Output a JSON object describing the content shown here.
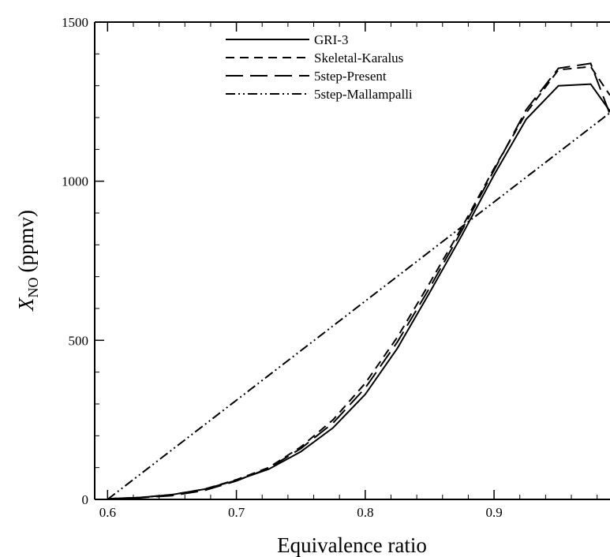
{
  "chart_data": {
    "type": "line",
    "xlabel": "Equivalence ratio",
    "ylabel": {
      "main": "X",
      "subscript": "NO",
      "unit": "(ppmv)"
    },
    "xlim": [
      0.59,
      0.99
    ],
    "ylim": [
      0,
      1500
    ],
    "xticks": [
      0.6,
      0.7,
      0.8,
      0.9
    ],
    "xtick_labels": [
      "0.6",
      "0.7",
      "0.8",
      "0.9"
    ],
    "yticks": [
      0,
      500,
      1000,
      1500
    ],
    "ytick_labels": [
      "0",
      "500",
      "1000",
      "1500"
    ],
    "grid": false,
    "legend_position": "top-center",
    "series": [
      {
        "name": "GRI-3",
        "dash": "solid",
        "x": [
          0.6,
          0.625,
          0.65,
          0.675,
          0.7,
          0.725,
          0.75,
          0.775,
          0.8,
          0.825,
          0.85,
          0.875,
          0.9,
          0.925,
          0.95,
          0.975,
          0.99
        ],
        "y": [
          2,
          6,
          15,
          32,
          60,
          95,
          150,
          225,
          330,
          475,
          650,
          830,
          1020,
          1195,
          1300,
          1305,
          1220
        ]
      },
      {
        "name": "Skeletal-Karalus",
        "dash": "short",
        "x": [
          0.6,
          0.625,
          0.65,
          0.675,
          0.7,
          0.725,
          0.75,
          0.775,
          0.8,
          0.825,
          0.85,
          0.875,
          0.9,
          0.925,
          0.95,
          0.975,
          0.99
        ],
        "y": [
          2,
          6,
          15,
          32,
          62,
          100,
          165,
          250,
          365,
          510,
          680,
          855,
          1040,
          1215,
          1350,
          1360,
          1270
        ]
      },
      {
        "name": "5step-Present",
        "dash": "long",
        "x": [
          0.6,
          0.625,
          0.65,
          0.675,
          0.7,
          0.725,
          0.75,
          0.775,
          0.8,
          0.825,
          0.85,
          0.875,
          0.9,
          0.925,
          0.95,
          0.975,
          0.99
        ],
        "y": [
          2,
          5,
          12,
          28,
          58,
          98,
          160,
          240,
          350,
          495,
          665,
          845,
          1035,
          1225,
          1355,
          1370,
          1210
        ]
      },
      {
        "name": "5step-Mallampalli",
        "dash": "dashdotdot",
        "x": [
          0.6,
          0.99
        ],
        "y": [
          0,
          1215
        ]
      }
    ]
  }
}
